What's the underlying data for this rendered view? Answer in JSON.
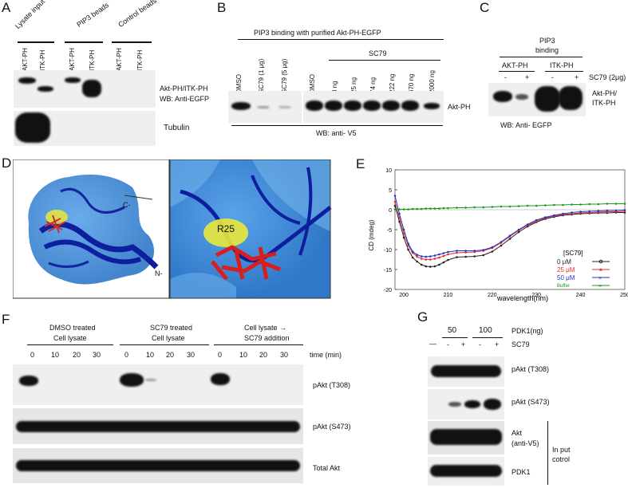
{
  "panels": {
    "a": {
      "letter": "A",
      "groups": [
        "Lysate input",
        "PIP3 beads",
        "Control beads"
      ],
      "lanes": [
        "AKT-PH",
        "ITK-PH",
        "AKT-PH",
        "ITK-PH",
        "AKT-PH",
        "ITK-PH"
      ],
      "blot_label_1": "Akt-PH/ITK-PH",
      "blot_label_2": "WB: Anti-EGFP",
      "blot_label_3": "Tubulin"
    },
    "b": {
      "letter": "B",
      "title": "PIP3 binding with purified Akt-PH-EGFP",
      "lanes_left": [
        "DMSO",
        "SC79 (1 μg)",
        "SC79 (5 μg)"
      ],
      "lanes_right": [
        "DMSO",
        "8 ng",
        "25 ng",
        "74 ng",
        "222 ng",
        "670 ng",
        "2000 ng"
      ],
      "sc79": "SC79",
      "band_label": "Akt-PH",
      "wb": "WB: anti- V5"
    },
    "c": {
      "letter": "C",
      "title_1": "PIP3",
      "title_2": "binding",
      "groups": [
        "AKT-PH",
        "ITK-PH"
      ],
      "signs": [
        "-",
        "+",
        "-",
        "+"
      ],
      "sc79": "SC79 (2μg)",
      "band_label_1": "Akt-PH/",
      "band_label_2": "ITK-PH",
      "wb": "WB: Anti- EGFP"
    },
    "d": {
      "letter": "D",
      "label_c": "C-",
      "label_n": "N-",
      "label_r25": "R25"
    },
    "e": {
      "letter": "E",
      "ylabel": "CD (mdeg)",
      "xlabel": "wavelength(nm)",
      "yticks": [
        "10",
        "5",
        "0",
        "-5",
        "-10",
        "-15",
        "-20"
      ],
      "xticks": [
        "200",
        "210",
        "220",
        "230",
        "240",
        "250"
      ],
      "legend_title": "[SC79]",
      "legend": [
        "0 μM",
        "25 μM",
        "50 μM",
        "Buffer"
      ]
    },
    "f": {
      "letter": "F",
      "groups_1": [
        "DMSO treated",
        "SC79 treated",
        "Cell lysate →"
      ],
      "groups_2": [
        "Cell lysate",
        "Cell lysate",
        "SC79 addition"
      ],
      "times": [
        "0",
        "10",
        "20",
        "30",
        "0",
        "10",
        "20",
        "30",
        "0",
        "10",
        "20",
        "30"
      ],
      "time_label": "time (min)",
      "blots": [
        "pAkt (T308)",
        "pAkt (S473)",
        "Total Akt"
      ]
    },
    "g": {
      "letter": "G",
      "pdk1_vals": [
        "50",
        "100"
      ],
      "pdk1_label": "PDK1(ng)",
      "signs": [
        "—",
        "-",
        "+",
        "-",
        "+"
      ],
      "sc79": "SC79",
      "blots": [
        "pAkt (T308)",
        "pAkt (S473)",
        "Akt",
        "(anti-V5)",
        "PDK1"
      ],
      "input_1": "In put",
      "input_2": "cotrol"
    }
  },
  "chart_data": {
    "type": "line",
    "xlabel": "wavelength(nm)",
    "ylabel": "CD (mdeg)",
    "xlim": [
      198,
      250
    ],
    "ylim": [
      -20,
      10
    ],
    "legend_title": "[SC79]",
    "legend_position": "right",
    "x": [
      198,
      199,
      200,
      201,
      202,
      203,
      204,
      205,
      206,
      207,
      208,
      209,
      210,
      212,
      214,
      216,
      218,
      220,
      222,
      224,
      226,
      228,
      230,
      232,
      234,
      236,
      238,
      240,
      242,
      244,
      246,
      248,
      250
    ],
    "series": [
      {
        "name": "0 μM",
        "color": "#222222",
        "values": [
          1,
          -3,
          -7,
          -10,
          -12,
          -13,
          -13.8,
          -14.2,
          -14.3,
          -14.2,
          -13.8,
          -13.2,
          -12.6,
          -11.9,
          -11.8,
          -11.7,
          -11.4,
          -10.5,
          -9,
          -7.3,
          -5.6,
          -4.2,
          -3.1,
          -2.3,
          -1.8,
          -1.4,
          -1.2,
          -1,
          -0.9,
          -0.8,
          -0.8,
          -0.7,
          -0.7
        ]
      },
      {
        "name": "25 μM",
        "color": "#e0302e",
        "values": [
          2,
          -2,
          -6,
          -9,
          -10.8,
          -11.8,
          -12.3,
          -12.5,
          -12.5,
          -12.3,
          -12,
          -11.6,
          -11.2,
          -10.8,
          -10.7,
          -10.6,
          -10.3,
          -9.6,
          -8.3,
          -6.7,
          -5.2,
          -3.9,
          -2.9,
          -2.1,
          -1.6,
          -1.2,
          -1,
          -0.8,
          -0.7,
          -0.6,
          -0.5,
          -0.5,
          -0.4
        ]
      },
      {
        "name": "50 μM",
        "color": "#2233cc",
        "values": [
          3.5,
          -1,
          -5,
          -8.5,
          -10.5,
          -11.3,
          -11.7,
          -11.8,
          -11.7,
          -11.5,
          -11.2,
          -10.9,
          -10.6,
          -10.3,
          -10.3,
          -10.3,
          -10.1,
          -9.4,
          -8.1,
          -6.5,
          -5,
          -3.7,
          -2.6,
          -1.9,
          -1.4,
          -1,
          -0.7,
          -0.5,
          -0.4,
          -0.3,
          -0.2,
          -0.2,
          -0.1
        ]
      },
      {
        "name": "Buffer",
        "color": "#1a9a1a",
        "values": [
          0.1,
          0.1,
          0.1,
          0.1,
          0.2,
          0.2,
          0.2,
          0.3,
          0.3,
          0.3,
          0.3,
          0.4,
          0.4,
          0.5,
          0.5,
          0.6,
          0.6,
          0.7,
          0.8,
          0.8,
          0.9,
          1,
          1,
          1.1,
          1.2,
          1.2,
          1.3,
          1.3,
          1.4,
          1.4,
          1.5,
          1.5,
          1.5
        ]
      }
    ]
  }
}
